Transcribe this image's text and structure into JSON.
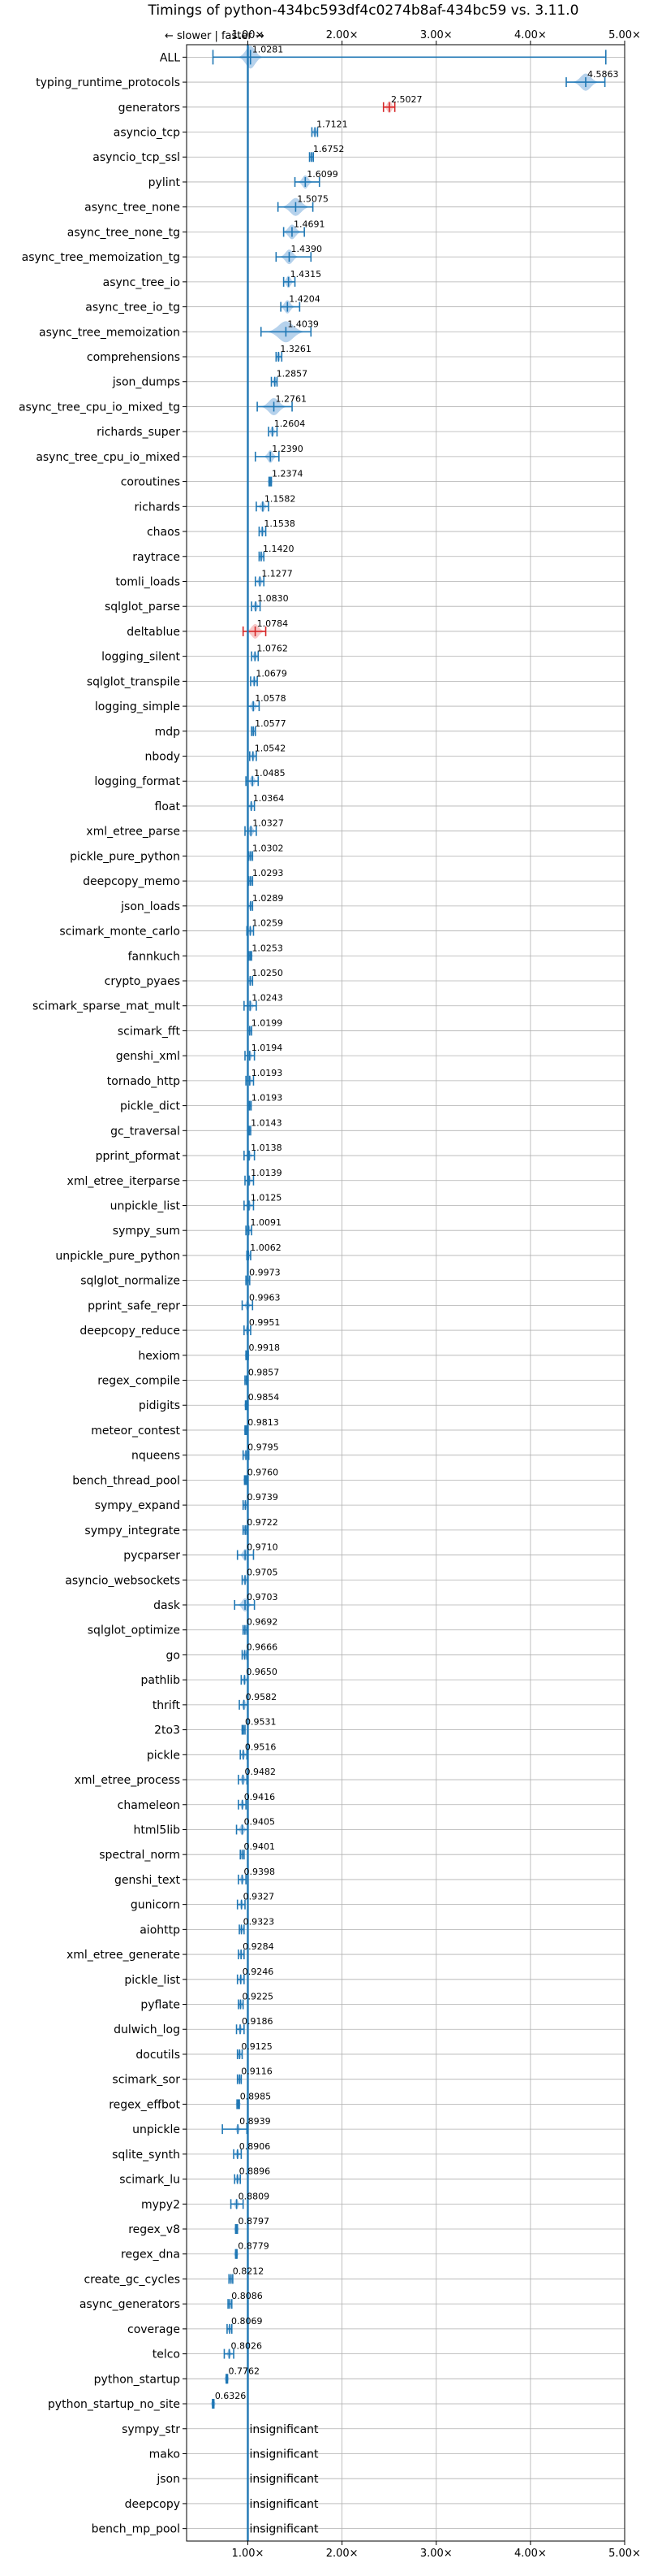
{
  "chart_data": {
    "type": "violin",
    "title": "Timings of python-434bc593df4c0274b8af-434bc59 vs. 3.11.0",
    "direction_label": "← slower | faster →",
    "xlim": [
      0.35,
      5.0
    ],
    "ticks": [
      1,
      2,
      3,
      4,
      5
    ],
    "tick_labels": [
      "1.00×",
      "2.00×",
      "3.00×",
      "4.00×",
      "5.00×"
    ],
    "grid": true,
    "reference_line": 1.0,
    "colors": {
      "body": "#9ec3e6",
      "line": "#1f77b4",
      "slower": "#d62728",
      "ref": "#1f77b4",
      "grid": "#b0b0b0"
    },
    "benchmarks": [
      {
        "name": "ALL",
        "value": 1.0281,
        "label": "1.0281",
        "lo": 0.63,
        "hi": 4.8,
        "spread": 0.13,
        "kind": "all"
      },
      {
        "name": "typing_runtime_protocols",
        "value": 4.5863,
        "label": "4.5863",
        "lo": 4.38,
        "hi": 4.79,
        "spread": 0.14
      },
      {
        "name": "generators",
        "value": 2.5027,
        "label": "2.5027",
        "lo": 2.44,
        "hi": 2.56,
        "spread": 0.06,
        "slower": true
      },
      {
        "name": "asyncio_tcp",
        "value": 1.7121,
        "label": "1.7121",
        "lo": 1.68,
        "hi": 1.74,
        "spread": 0.03
      },
      {
        "name": "asyncio_tcp_ssl",
        "value": 1.6752,
        "label": "1.6752",
        "lo": 1.655,
        "hi": 1.695,
        "spread": 0.02
      },
      {
        "name": "pylint",
        "value": 1.6099,
        "label": "1.6099",
        "lo": 1.5,
        "hi": 1.76,
        "spread": 0.08
      },
      {
        "name": "async_tree_none",
        "value": 1.5075,
        "label": "1.5075",
        "lo": 1.32,
        "hi": 1.69,
        "spread": 0.15
      },
      {
        "name": "async_tree_none_tg",
        "value": 1.4691,
        "label": "1.4691",
        "lo": 1.38,
        "hi": 1.6,
        "spread": 0.1
      },
      {
        "name": "async_tree_memoization_tg",
        "value": 1.439,
        "label": "1.4390",
        "lo": 1.3,
        "hi": 1.67,
        "spread": 0.1
      },
      {
        "name": "async_tree_io",
        "value": 1.4315,
        "label": "1.4315",
        "lo": 1.38,
        "hi": 1.5,
        "spread": 0.06
      },
      {
        "name": "async_tree_io_tg",
        "value": 1.4204,
        "label": "1.4204",
        "lo": 1.35,
        "hi": 1.55,
        "spread": 0.08
      },
      {
        "name": "async_tree_memoization",
        "value": 1.4039,
        "label": "1.4039",
        "lo": 1.14,
        "hi": 1.67,
        "spread": 0.2
      },
      {
        "name": "comprehensions",
        "value": 1.3261,
        "label": "1.3261",
        "lo": 1.3,
        "hi": 1.36,
        "spread": 0.03
      },
      {
        "name": "json_dumps",
        "value": 1.2857,
        "label": "1.2857",
        "lo": 1.25,
        "hi": 1.31,
        "spread": 0.03
      },
      {
        "name": "async_tree_cpu_io_mixed_tg",
        "value": 1.2761,
        "label": "1.2761",
        "lo": 1.1,
        "hi": 1.47,
        "spread": 0.14
      },
      {
        "name": "richards_super",
        "value": 1.2604,
        "label": "1.2604",
        "lo": 1.22,
        "hi": 1.31,
        "spread": 0.04
      },
      {
        "name": "async_tree_cpu_io_mixed",
        "value": 1.239,
        "label": "1.2390",
        "lo": 1.08,
        "hi": 1.33,
        "spread": 0.07
      },
      {
        "name": "coroutines",
        "value": 1.2374,
        "label": "1.2374",
        "lo": 1.225,
        "hi": 1.25,
        "spread": 0.01
      },
      {
        "name": "richards",
        "value": 1.1582,
        "label": "1.1582",
        "lo": 1.09,
        "hi": 1.22,
        "spread": 0.05
      },
      {
        "name": "chaos",
        "value": 1.1538,
        "label": "1.1538",
        "lo": 1.12,
        "hi": 1.19,
        "spread": 0.03
      },
      {
        "name": "raytrace",
        "value": 1.142,
        "label": "1.1420",
        "lo": 1.12,
        "hi": 1.17,
        "spread": 0.02
      },
      {
        "name": "tomli_loads",
        "value": 1.1277,
        "label": "1.1277",
        "lo": 1.08,
        "hi": 1.17,
        "spread": 0.04
      },
      {
        "name": "sqlglot_parse",
        "value": 1.083,
        "label": "1.0830",
        "lo": 1.04,
        "hi": 1.13,
        "spread": 0.04
      },
      {
        "name": "deltablue",
        "value": 1.0784,
        "label": "1.0784",
        "lo": 0.95,
        "hi": 1.19,
        "spread": 0.1,
        "slower": true
      },
      {
        "name": "logging_silent",
        "value": 1.0762,
        "label": "1.0762",
        "lo": 1.04,
        "hi": 1.11,
        "spread": 0.03
      },
      {
        "name": "sqlglot_transpile",
        "value": 1.0679,
        "label": "1.0679",
        "lo": 1.03,
        "hi": 1.1,
        "spread": 0.03
      },
      {
        "name": "logging_simple",
        "value": 1.0578,
        "label": "1.0578",
        "lo": 1.0,
        "hi": 1.12,
        "spread": 0.05
      },
      {
        "name": "mdp",
        "value": 1.0577,
        "label": "1.0577",
        "lo": 1.04,
        "hi": 1.08,
        "spread": 0.02
      },
      {
        "name": "nbody",
        "value": 1.0542,
        "label": "1.0542",
        "lo": 1.02,
        "hi": 1.09,
        "spread": 0.03
      },
      {
        "name": "logging_format",
        "value": 1.0485,
        "label": "1.0485",
        "lo": 0.98,
        "hi": 1.11,
        "spread": 0.05
      },
      {
        "name": "float",
        "value": 1.0364,
        "label": "1.0364",
        "lo": 1.0,
        "hi": 1.07,
        "spread": 0.03
      },
      {
        "name": "xml_etree_parse",
        "value": 1.0327,
        "label": "1.0327",
        "lo": 0.97,
        "hi": 1.09,
        "spread": 0.05
      },
      {
        "name": "pickle_pure_python",
        "value": 1.0302,
        "label": "1.0302",
        "lo": 1.01,
        "hi": 1.05,
        "spread": 0.02
      },
      {
        "name": "deepcopy_memo",
        "value": 1.0293,
        "label": "1.0293",
        "lo": 1.01,
        "hi": 1.05,
        "spread": 0.02
      },
      {
        "name": "json_loads",
        "value": 1.0289,
        "label": "1.0289",
        "lo": 1.0,
        "hi": 1.05,
        "spread": 0.02
      },
      {
        "name": "scimark_monte_carlo",
        "value": 1.0259,
        "label": "1.0259",
        "lo": 0.99,
        "hi": 1.06,
        "spread": 0.03
      },
      {
        "name": "fannkuch",
        "value": 1.0253,
        "label": "1.0253",
        "lo": 1.01,
        "hi": 1.04,
        "spread": 0.015
      },
      {
        "name": "crypto_pyaes",
        "value": 1.025,
        "label": "1.0250",
        "lo": 1.0,
        "hi": 1.05,
        "spread": 0.02
      },
      {
        "name": "scimark_sparse_mat_mult",
        "value": 1.0243,
        "label": "1.0243",
        "lo": 0.96,
        "hi": 1.09,
        "spread": 0.05
      },
      {
        "name": "scimark_fft",
        "value": 1.0199,
        "label": "1.0199",
        "lo": 1.0,
        "hi": 1.04,
        "spread": 0.02
      },
      {
        "name": "genshi_xml",
        "value": 1.0194,
        "label": "1.0194",
        "lo": 0.97,
        "hi": 1.07,
        "spread": 0.04
      },
      {
        "name": "tornado_http",
        "value": 1.0193,
        "label": "1.0193",
        "lo": 0.98,
        "hi": 1.06,
        "spread": 0.04
      },
      {
        "name": "pickle_dict",
        "value": 1.0193,
        "label": "1.0193",
        "lo": 1.005,
        "hi": 1.035,
        "spread": 0.015
      },
      {
        "name": "gc_traversal",
        "value": 1.0143,
        "label": "1.0143",
        "lo": 1.0,
        "hi": 1.03,
        "spread": 0.01
      },
      {
        "name": "pprint_pformat",
        "value": 1.0138,
        "label": "1.0138",
        "lo": 0.96,
        "hi": 1.07,
        "spread": 0.04
      },
      {
        "name": "xml_etree_iterparse",
        "value": 1.0139,
        "label": "1.0139",
        "lo": 0.97,
        "hi": 1.06,
        "spread": 0.04
      },
      {
        "name": "unpickle_list",
        "value": 1.0125,
        "label": "1.0125",
        "lo": 0.96,
        "hi": 1.06,
        "spread": 0.04
      },
      {
        "name": "sympy_sum",
        "value": 1.0091,
        "label": "1.0091",
        "lo": 0.98,
        "hi": 1.04,
        "spread": 0.03
      },
      {
        "name": "unpickle_pure_python",
        "value": 1.0062,
        "label": "1.0062",
        "lo": 0.99,
        "hi": 1.03,
        "spread": 0.015
      },
      {
        "name": "sqlglot_normalize",
        "value": 0.9973,
        "label": "0.9973",
        "lo": 0.98,
        "hi": 1.02,
        "spread": 0.015
      },
      {
        "name": "pprint_safe_repr",
        "value": 0.9963,
        "label": "0.9963",
        "lo": 0.94,
        "hi": 1.05,
        "spread": 0.04
      },
      {
        "name": "deepcopy_reduce",
        "value": 0.9951,
        "label": "0.9951",
        "lo": 0.96,
        "hi": 1.03,
        "spread": 0.03
      },
      {
        "name": "hexiom",
        "value": 0.9918,
        "label": "0.9918",
        "lo": 0.98,
        "hi": 1.005,
        "spread": 0.01
      },
      {
        "name": "regex_compile",
        "value": 0.9857,
        "label": "0.9857",
        "lo": 0.97,
        "hi": 1.0,
        "spread": 0.01
      },
      {
        "name": "pidigits",
        "value": 0.9854,
        "label": "0.9854",
        "lo": 0.975,
        "hi": 0.995,
        "spread": 0.01
      },
      {
        "name": "meteor_contest",
        "value": 0.9813,
        "label": "0.9813",
        "lo": 0.97,
        "hi": 0.995,
        "spread": 0.01
      },
      {
        "name": "nqueens",
        "value": 0.9795,
        "label": "0.9795",
        "lo": 0.95,
        "hi": 1.01,
        "spread": 0.02
      },
      {
        "name": "bench_thread_pool",
        "value": 0.976,
        "label": "0.9760",
        "lo": 0.965,
        "hi": 0.99,
        "spread": 0.01
      },
      {
        "name": "sympy_expand",
        "value": 0.9739,
        "label": "0.9739",
        "lo": 0.95,
        "hi": 1.0,
        "spread": 0.02
      },
      {
        "name": "sympy_integrate",
        "value": 0.9722,
        "label": "0.9722",
        "lo": 0.95,
        "hi": 0.99,
        "spread": 0.015
      },
      {
        "name": "pycparser",
        "value": 0.971,
        "label": "0.9710",
        "lo": 0.89,
        "hi": 1.06,
        "spread": 0.06
      },
      {
        "name": "asyncio_websockets",
        "value": 0.9705,
        "label": "0.9705",
        "lo": 0.94,
        "hi": 1.0,
        "spread": 0.02
      },
      {
        "name": "dask",
        "value": 0.9703,
        "label": "0.9703",
        "lo": 0.86,
        "hi": 1.07,
        "spread": 0.08
      },
      {
        "name": "sqlglot_optimize",
        "value": 0.9692,
        "label": "0.9692",
        "lo": 0.95,
        "hi": 0.99,
        "spread": 0.015
      },
      {
        "name": "go",
        "value": 0.9666,
        "label": "0.9666",
        "lo": 0.94,
        "hi": 0.99,
        "spread": 0.02
      },
      {
        "name": "pathlib",
        "value": 0.965,
        "label": "0.9650",
        "lo": 0.93,
        "hi": 1.0,
        "spread": 0.03
      },
      {
        "name": "thrift",
        "value": 0.9582,
        "label": "0.9582",
        "lo": 0.91,
        "hi": 1.0,
        "spread": 0.04
      },
      {
        "name": "2to3",
        "value": 0.9531,
        "label": "0.9531",
        "lo": 0.94,
        "hi": 0.97,
        "spread": 0.01
      },
      {
        "name": "pickle",
        "value": 0.9516,
        "label": "0.9516",
        "lo": 0.92,
        "hi": 0.99,
        "spread": 0.03
      },
      {
        "name": "xml_etree_process",
        "value": 0.9482,
        "label": "0.9482",
        "lo": 0.9,
        "hi": 0.99,
        "spread": 0.04
      },
      {
        "name": "chameleon",
        "value": 0.9416,
        "label": "0.9416",
        "lo": 0.9,
        "hi": 0.98,
        "spread": 0.03
      },
      {
        "name": "html5lib",
        "value": 0.9405,
        "label": "0.9405",
        "lo": 0.88,
        "hi": 1.0,
        "spread": 0.05
      },
      {
        "name": "spectral_norm",
        "value": 0.9401,
        "label": "0.9401",
        "lo": 0.92,
        "hi": 0.96,
        "spread": 0.015
      },
      {
        "name": "genshi_text",
        "value": 0.9398,
        "label": "0.9398",
        "lo": 0.9,
        "hi": 0.98,
        "spread": 0.03
      },
      {
        "name": "gunicorn",
        "value": 0.9327,
        "label": "0.9327",
        "lo": 0.89,
        "hi": 0.97,
        "spread": 0.03
      },
      {
        "name": "aiohttp",
        "value": 0.9323,
        "label": "0.9323",
        "lo": 0.91,
        "hi": 0.96,
        "spread": 0.015
      },
      {
        "name": "xml_etree_generate",
        "value": 0.9284,
        "label": "0.9284",
        "lo": 0.9,
        "hi": 0.96,
        "spread": 0.025
      },
      {
        "name": "pickle_list",
        "value": 0.9246,
        "label": "0.9246",
        "lo": 0.89,
        "hi": 0.96,
        "spread": 0.03
      },
      {
        "name": "pyflate",
        "value": 0.9225,
        "label": "0.9225",
        "lo": 0.9,
        "hi": 0.95,
        "spread": 0.02
      },
      {
        "name": "dulwich_log",
        "value": 0.9186,
        "label": "0.9186",
        "lo": 0.88,
        "hi": 0.96,
        "spread": 0.03
      },
      {
        "name": "docutils",
        "value": 0.9125,
        "label": "0.9125",
        "lo": 0.89,
        "hi": 0.94,
        "spread": 0.02
      },
      {
        "name": "scimark_sor",
        "value": 0.9116,
        "label": "0.9116",
        "lo": 0.89,
        "hi": 0.93,
        "spread": 0.015
      },
      {
        "name": "regex_effbot",
        "value": 0.8985,
        "label": "0.8985",
        "lo": 0.885,
        "hi": 0.91,
        "spread": 0.01
      },
      {
        "name": "unpickle",
        "value": 0.8939,
        "label": "0.8939",
        "lo": 0.73,
        "hi": 0.99,
        "spread": 0.03
      },
      {
        "name": "sqlite_synth",
        "value": 0.8906,
        "label": "0.8906",
        "lo": 0.85,
        "hi": 0.93,
        "spread": 0.03
      },
      {
        "name": "scimark_lu",
        "value": 0.8896,
        "label": "0.8896",
        "lo": 0.86,
        "hi": 0.92,
        "spread": 0.02
      },
      {
        "name": "mypy2",
        "value": 0.8809,
        "label": "0.8809",
        "lo": 0.82,
        "hi": 0.95,
        "spread": 0.04
      },
      {
        "name": "regex_v8",
        "value": 0.8797,
        "label": "0.8797",
        "lo": 0.87,
        "hi": 0.89,
        "spread": 0.008
      },
      {
        "name": "regex_dna",
        "value": 0.8779,
        "label": "0.8779",
        "lo": 0.87,
        "hi": 0.885,
        "spread": 0.008
      },
      {
        "name": "create_gc_cycles",
        "value": 0.8212,
        "label": "0.8212",
        "lo": 0.8,
        "hi": 0.84,
        "spread": 0.015
      },
      {
        "name": "async_generators",
        "value": 0.8086,
        "label": "0.8086",
        "lo": 0.79,
        "hi": 0.83,
        "spread": 0.015
      },
      {
        "name": "coverage",
        "value": 0.8069,
        "label": "0.8069",
        "lo": 0.78,
        "hi": 0.83,
        "spread": 0.02
      },
      {
        "name": "telco",
        "value": 0.8026,
        "label": "0.8026",
        "lo": 0.75,
        "hi": 0.85,
        "spread": 0.03
      },
      {
        "name": "python_startup",
        "value": 0.7762,
        "label": "0.7762",
        "lo": 0.77,
        "hi": 0.785,
        "spread": 0.006
      },
      {
        "name": "python_startup_no_site",
        "value": 0.6326,
        "label": "0.6326",
        "lo": 0.625,
        "hi": 0.64,
        "spread": 0.006
      },
      {
        "name": "sympy_str",
        "value": null,
        "label": "insignificant"
      },
      {
        "name": "mako",
        "value": null,
        "label": "insignificant"
      },
      {
        "name": "json",
        "value": null,
        "label": "insignificant"
      },
      {
        "name": "deepcopy",
        "value": null,
        "label": "insignificant"
      },
      {
        "name": "bench_mp_pool",
        "value": null,
        "label": "insignificant"
      }
    ]
  }
}
